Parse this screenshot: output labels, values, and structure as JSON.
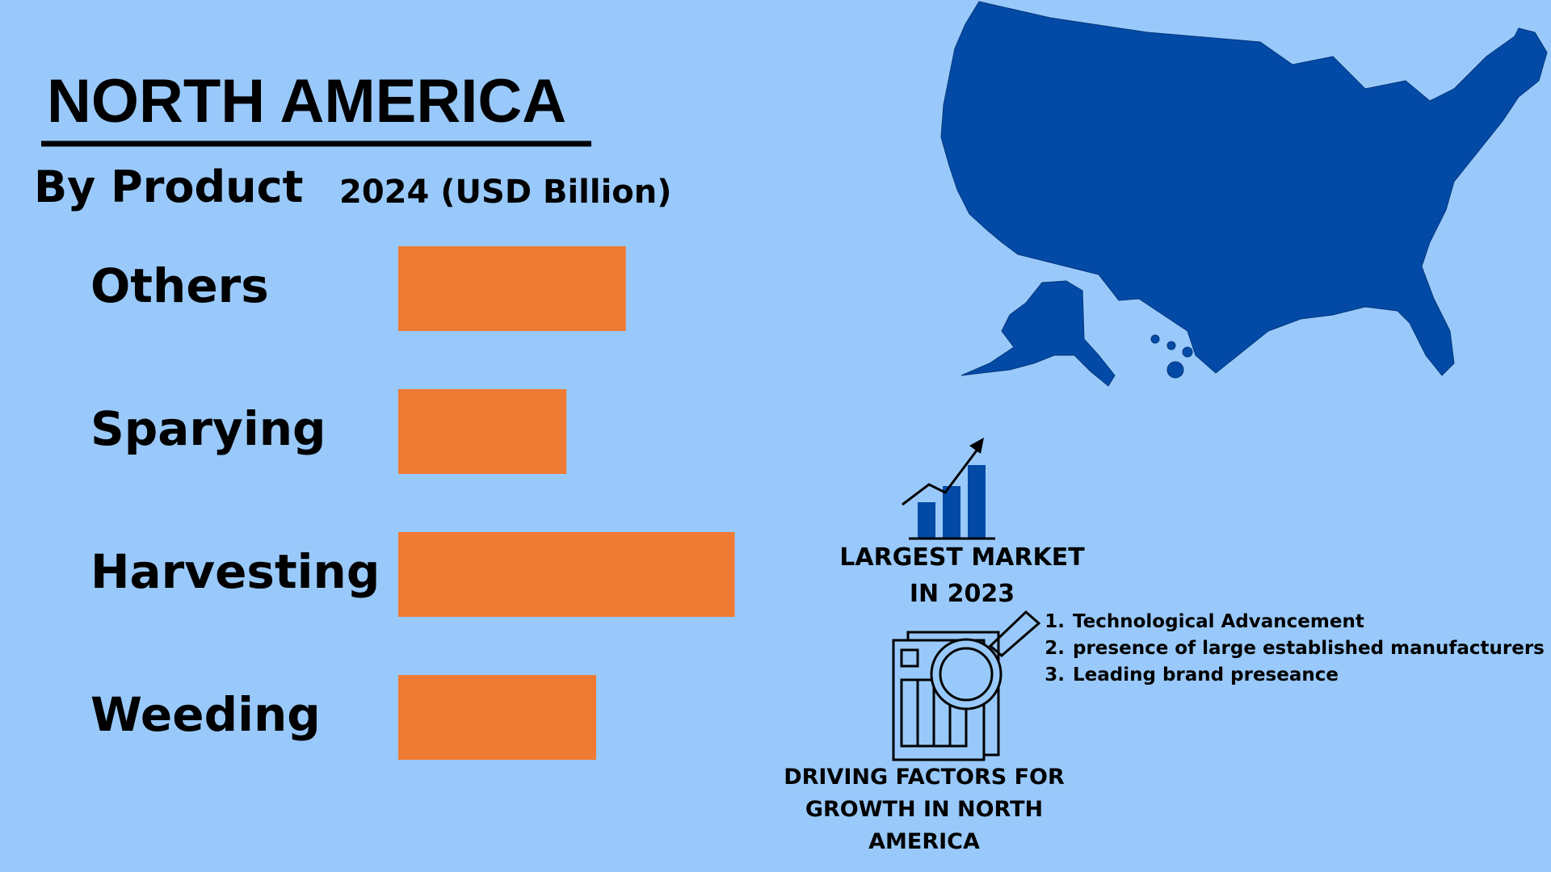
{
  "chart_data": {
    "type": "bar",
    "orientation": "horizontal",
    "title": "NORTH AMERICA",
    "subtitle": "By Product",
    "x_label": "2024 (USD Billion)",
    "categories": [
      "Others",
      "Sparying",
      "Harvesting",
      "Weeding"
    ],
    "values": [
      2.3,
      1.7,
      3.4,
      2.0
    ],
    "color": "#ef7a33",
    "xlim": [
      0,
      4
    ]
  },
  "largest_market": "LARGEST MARKET IN 2023",
  "driving_factors": {
    "title": "DRIVING FACTORS FOR GROWTH IN NORTH AMERICA",
    "items": [
      "Technological Advancement",
      "presence of large established manufacturers",
      "Leading brand preseance"
    ]
  }
}
